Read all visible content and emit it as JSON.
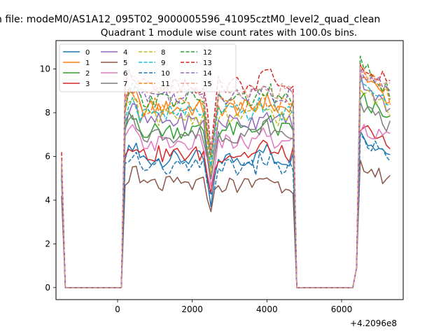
{
  "chart_data": {
    "type": "line",
    "suptitle": "n file: modeM0/AS1A12_095T02_9000005596_41095cztM0_level2_quad_clean",
    "title": "Quadrant 1 module wise count rates with 100.0s bins.",
    "xlabel": "",
    "ylabel": "",
    "x_offset_label": "+4.2096e8",
    "xlim": [
      -1650,
      7650
    ],
    "ylim": [
      -0.55,
      11.3
    ],
    "xticks": [
      0,
      2000,
      4000,
      6000
    ],
    "yticks": [
      0,
      2,
      4,
      6,
      8,
      10
    ],
    "grid": false,
    "legend_position": "upper-left",
    "legend_columns": 4,
    "x_start": -1500,
    "x_step": 100,
    "series": [
      {
        "name": "0",
        "color": "#1f77b4",
        "dash": "solid",
        "base": 5.9,
        "spike": 5.0,
        "rise": 7.0,
        "dip": 0.62
      },
      {
        "name": "1",
        "color": "#ff7f0e",
        "dash": "solid",
        "base": 8.2,
        "spike": 5.5,
        "rise": 9.8,
        "dip": 0.72
      },
      {
        "name": "2",
        "color": "#2ca02c",
        "dash": "solid",
        "base": 7.2,
        "spike": 5.3,
        "rise": 8.8,
        "dip": 0.7
      },
      {
        "name": "3",
        "color": "#d62728",
        "dash": "solid",
        "base": 6.1,
        "spike": 5.2,
        "rise": 7.5,
        "dip": 0.72
      },
      {
        "name": "4",
        "color": "#9467bd",
        "dash": "solid",
        "base": 7.6,
        "spike": 5.4,
        "rise": 9.6,
        "dip": 0.7
      },
      {
        "name": "5",
        "color": "#8c564b",
        "dash": "solid",
        "base": 4.7,
        "spike": 4.2,
        "rise": 5.6,
        "dip": 0.8
      },
      {
        "name": "6",
        "color": "#e377c2",
        "dash": "solid",
        "base": 6.6,
        "spike": 5.1,
        "rise": 7.4,
        "dip": 0.72
      },
      {
        "name": "7",
        "color": "#7f7f7f",
        "dash": "solid",
        "base": 7.0,
        "spike": 5.2,
        "rise": 8.5,
        "dip": 0.72
      },
      {
        "name": "8",
        "color": "#bcbd22",
        "dash": "dashed",
        "base": 7.8,
        "spike": 5.4,
        "rise": 9.2,
        "dip": 0.7
      },
      {
        "name": "9",
        "color": "#17becf",
        "dash": "dashed",
        "base": 8.0,
        "spike": 5.5,
        "rise": 9.4,
        "dip": 0.72
      },
      {
        "name": "10",
        "color": "#1f77b4",
        "dash": "dashed",
        "base": 5.5,
        "spike": 5.0,
        "rise": 7.0,
        "dip": 0.75
      },
      {
        "name": "11",
        "color": "#ff7f0e",
        "dash": "dashed",
        "base": 8.3,
        "spike": 5.6,
        "rise": 10.0,
        "dip": 0.72
      },
      {
        "name": "12",
        "color": "#2ca02c",
        "dash": "dashed",
        "base": 8.6,
        "spike": 5.6,
        "rise": 10.3,
        "dip": 0.7
      },
      {
        "name": "13",
        "color": "#d62728",
        "dash": "dashed",
        "base": 9.3,
        "spike": 6.2,
        "rise": 10.2,
        "dip": 0.7
      },
      {
        "name": "14",
        "color": "#9467bd",
        "dash": "dashed",
        "base": 8.8,
        "spike": 5.7,
        "rise": 9.9,
        "dip": 0.72
      },
      {
        "name": "15",
        "color": "#e8a090",
        "dash": "dashed",
        "base": 9.0,
        "spike": 5.8,
        "rise": 9.9,
        "dip": 0.7
      }
    ]
  }
}
